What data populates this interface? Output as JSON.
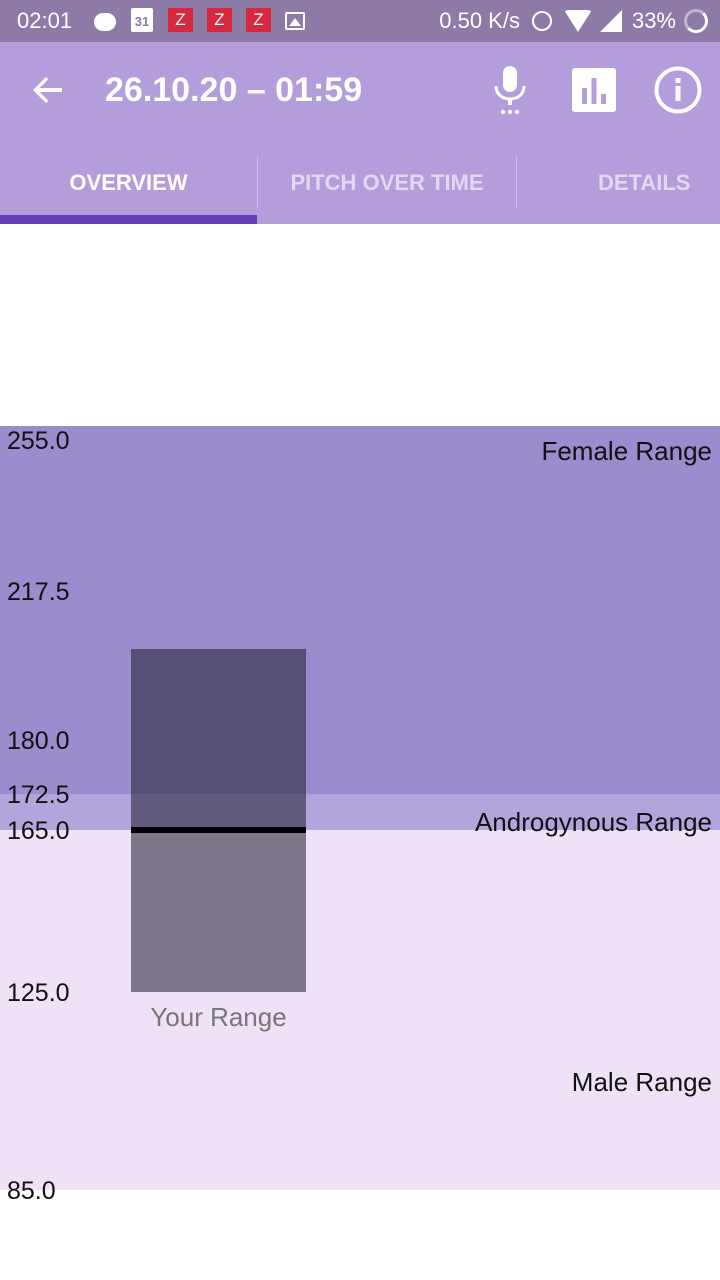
{
  "status_bar": {
    "time": "02:01",
    "calendar_day": "31",
    "app_badge_glyph": "Z",
    "network_speed": "0.50 K/s",
    "battery": "33%",
    "icons": [
      "message-icon",
      "calendar-icon",
      "app-z-icon",
      "app-z-icon",
      "app-z-icon",
      "image-icon",
      "alarm-icon",
      "wifi-icon",
      "signal-icon",
      "battery-icon"
    ]
  },
  "app_bar": {
    "title": "26.10.20 – 01:59",
    "actions": [
      "microphone-icon",
      "bar-chart-icon",
      "info-icon"
    ]
  },
  "tabs": [
    {
      "label": "OVERVIEW",
      "active": true
    },
    {
      "label": "PITCH OVER TIME",
      "active": false
    },
    {
      "label": "DETAILS",
      "active": false
    }
  ],
  "colors": {
    "status_bar": "#8d7aa6",
    "app_bar": "#b39ddb",
    "tab_indicator": "#673ab7",
    "female_band": "#9a8ccd",
    "androgynous_band": "#b3a5dc",
    "male_band": "#efe2f6"
  },
  "chart_data": {
    "type": "bar",
    "y_axis_ticks": [
      255.0,
      217.5,
      180.0,
      172.5,
      165.0,
      125.0,
      85.0
    ],
    "y_axis_tick_labels": [
      "255.0",
      "217.5",
      "180.0",
      "172.5",
      "165.0",
      "125.0",
      "85.0"
    ],
    "ylim": [
      85.0,
      255.0
    ],
    "bands": [
      {
        "label": "Female Range",
        "from": 172.5,
        "to": 255.0
      },
      {
        "label": "Androgynous Range",
        "from": 165.0,
        "to": 172.5
      },
      {
        "label": "Male Range",
        "from": 85.0,
        "to": 165.0
      }
    ],
    "user_range": {
      "label": "Your Range",
      "low": 125.0,
      "high": 203.0,
      "median": 165.0
    }
  }
}
